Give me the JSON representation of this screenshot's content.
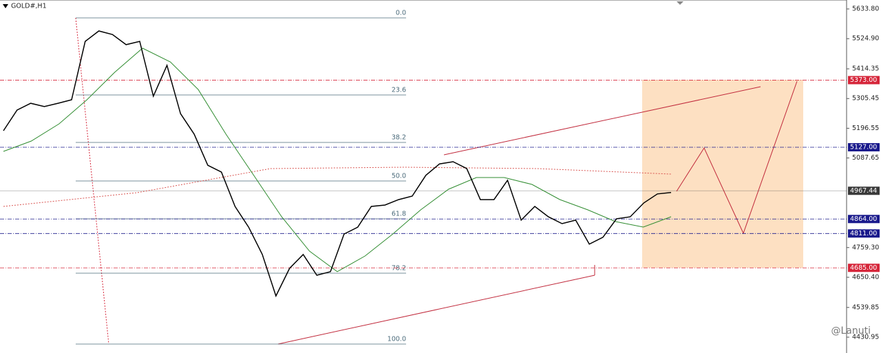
{
  "chart_data": {
    "type": "line",
    "title": "GOLD#,H1",
    "watermark": "@Lanuti",
    "values": [
      5187.5,
      5263,
      5288,
      5276,
      5288,
      5301,
      5515,
      5553,
      5540,
      5503,
      5515,
      5314,
      5427,
      5250,
      5175,
      5061,
      5036,
      4910,
      4834,
      4734,
      4582,
      4683,
      4734,
      4658,
      4671,
      4809,
      4834,
      4910,
      4915,
      4935,
      4948,
      5024,
      5066,
      5074,
      5049,
      4935,
      4935,
      5006,
      4860,
      4910,
      4872,
      4847,
      4860,
      4772,
      4797,
      4865,
      4872,
      4923,
      4956,
      4961
    ],
    "color": "#000000",
    "ma_fast": {
      "color": "#2e8b2e",
      "values": [
        5111.9,
        5149.7,
        5212.7,
        5301,
        5401.8,
        5490,
        5439.6,
        5338.8,
        5174.9,
        5023.6,
        4872.3,
        4746.3,
        4671,
        4728.6,
        4809.3,
        4897.6,
        4973.2,
        5016,
        5016,
        4990.8,
        4935.4,
        4897.6,
        4854.7,
        4834.5,
        4872.3
      ]
    },
    "ma_slow": {
      "color": "#d9534f",
      "values": [
        4910,
        4960.6,
        5048.8,
        5053.9,
        5048.8,
        5028.7
      ]
    },
    "ylim": [
      4372.95,
      5666.6
    ],
    "yticks": [
      {
        "value": 5633.8,
        "label": "5633.80"
      },
      {
        "value": 5524.9,
        "label": "5524.90"
      },
      5414.35,
      5305.45,
      5196.55,
      5087.65,
      {
        "value": 4759.3,
        "label": "4759.30"
      },
      {
        "value": 4650.4,
        "label": "4650.40"
      },
      4539.85,
      4430.95
    ],
    "price_levels": [
      {
        "value": 5373,
        "label": "5373.00",
        "color": "#d6263a"
      },
      {
        "value": 5127,
        "label": "5127.00",
        "color": "#1a1a8c"
      },
      {
        "value": 4967.44,
        "label": "4967.44",
        "color": "#3a3a3a"
      },
      {
        "value": 4864,
        "label": "4864.00",
        "color": "#1a1a8c"
      },
      {
        "value": 4811,
        "label": "4811.00",
        "color": "#1a1a8c"
      },
      {
        "value": 4685,
        "label": "4685.00",
        "color": "#d6263a"
      }
    ],
    "fib_levels": [
      {
        "value": 5601,
        "label": "0.0"
      },
      {
        "value": 5318.6,
        "label": "23.6"
      },
      {
        "value": 5144.6,
        "label": "38.2"
      },
      {
        "value": 5003.4,
        "label": "50.0"
      },
      {
        "value": 4864.7,
        "label": "61.8"
      },
      {
        "value": 4665.5,
        "label": "78.2"
      },
      {
        "value": 4405.8,
        "label": "100.0"
      }
    ]
  }
}
